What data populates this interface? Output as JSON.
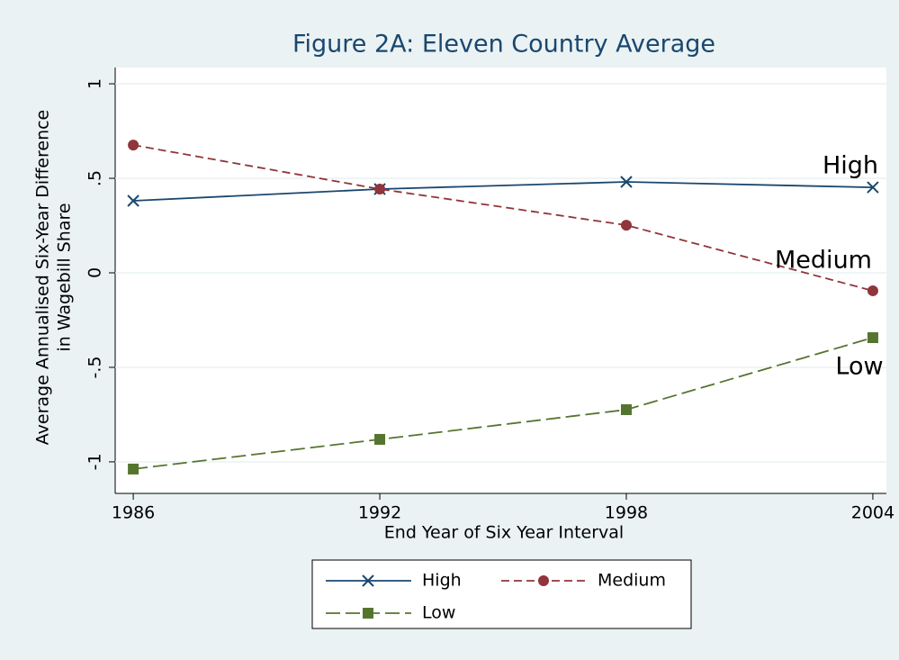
{
  "chart_data": {
    "type": "line",
    "title": "Figure 2A: Eleven Country Average",
    "xlabel": "End Year of Six Year Interval",
    "ylabel": [
      "Average Annualised Six-Year Difference",
      "in Wagebill Share"
    ],
    "x": [
      1986,
      1992,
      1998,
      2004
    ],
    "xlim": [
      1985.56,
      2004.33
    ],
    "xticks": [
      1986,
      1992,
      1998,
      2004
    ],
    "ylim": [
      -1.167,
      1.086
    ],
    "yticks": [
      {
        "value": -1,
        "label": "-1"
      },
      {
        "value": -0.5,
        "label": "-.5"
      },
      0,
      {
        "value": 0.5,
        "label": ".5"
      },
      1
    ],
    "grid": true,
    "series": [
      {
        "name": "High",
        "color": "#1a476f",
        "dash": "solid",
        "marker": "x",
        "values": [
          0.381,
          0.443,
          0.481,
          0.452
        ]
      },
      {
        "name": "Medium",
        "color": "#90353b",
        "dash": "dashed",
        "marker": "circle",
        "values": [
          0.676,
          0.443,
          0.252,
          -0.095
        ]
      },
      {
        "name": "Low",
        "color": "#55752f",
        "dash": "longdash",
        "marker": "square",
        "values": [
          -1.038,
          -0.881,
          -0.724,
          -0.343
        ]
      }
    ],
    "annotations": [
      "High",
      "Medium",
      "Low"
    ]
  }
}
